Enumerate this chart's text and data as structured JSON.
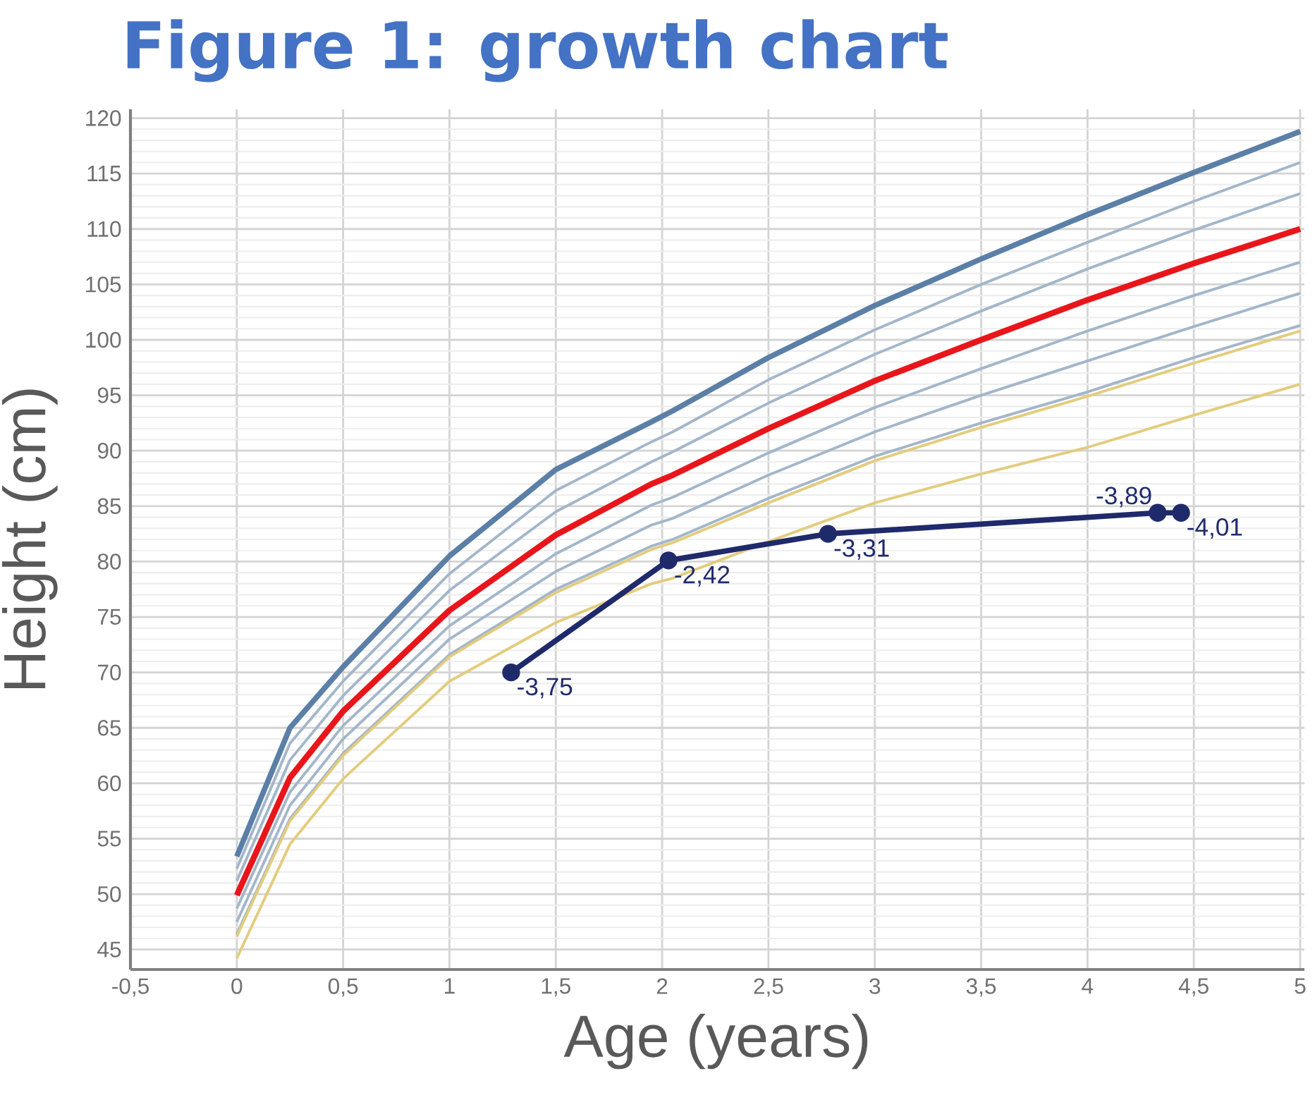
{
  "chart_data": {
    "type": "line",
    "title": "Figure 1: growth chart",
    "xlabel": "Age (years)",
    "ylabel": "Height (cm)",
    "x": [
      0,
      0.25,
      0.5,
      1,
      1.5,
      1.95,
      2.05,
      2.5,
      3,
      3.5,
      4,
      4.5,
      5
    ],
    "series": [
      {
        "color": "#5b7fa6",
        "values": [
          53.4,
          65.0,
          70.5,
          80.5,
          88.3,
          92.6,
          93.6,
          98.4,
          103.1,
          107.3,
          111.3,
          115.1,
          118.8
        ]
      },
      {
        "color": "#a3b6ca",
        "values": [
          52.3,
          63.6,
          69.2,
          78.9,
          86.4,
          90.8,
          91.7,
          96.4,
          100.9,
          105.0,
          108.8,
          112.5,
          116.0
        ]
      },
      {
        "color": "#a3b6ca",
        "values": [
          51.2,
          62.1,
          67.9,
          77.4,
          84.5,
          89.0,
          89.9,
          94.3,
          98.7,
          102.6,
          106.4,
          109.9,
          113.2
        ]
      },
      {
        "color": "#e8161b",
        "values": [
          49.9,
          60.5,
          66.5,
          75.6,
          82.4,
          87.0,
          87.8,
          92.0,
          96.3,
          100.0,
          103.6,
          106.9,
          110.0
        ]
      },
      {
        "color": "#a3b6ca",
        "values": [
          48.7,
          59.2,
          65.2,
          74.2,
          80.7,
          85.1,
          85.8,
          89.8,
          93.9,
          97.4,
          100.8,
          104.0,
          107.0
        ]
      },
      {
        "color": "#a3b6ca",
        "values": [
          47.5,
          58.0,
          64.0,
          73.0,
          79.1,
          83.3,
          83.9,
          87.8,
          91.7,
          95.0,
          98.1,
          101.2,
          104.2
        ]
      },
      {
        "color": "#a3b6ca",
        "values": [
          46.4,
          56.8,
          62.7,
          71.6,
          77.5,
          81.4,
          82.0,
          85.7,
          89.5,
          92.5,
          95.3,
          98.4,
          101.3
        ]
      },
      {
        "color": "#e3cc7c",
        "values": [
          46.2,
          56.6,
          62.5,
          71.4,
          77.2,
          81.1,
          81.7,
          85.3,
          89.1,
          92.1,
          94.9,
          97.9,
          100.8
        ]
      },
      {
        "color": "#e3cc7c",
        "values": [
          44.2,
          54.5,
          60.4,
          69.2,
          74.5,
          78.0,
          78.5,
          81.8,
          85.3,
          87.9,
          90.3,
          93.2,
          96.0
        ]
      },
      {
        "color": "#1f2a6b",
        "marker": "circle",
        "x": [
          1.29,
          2.03,
          2.78,
          4.33,
          4.44
        ],
        "values": [
          70.0,
          80.1,
          82.5,
          84.4,
          84.4
        ]
      }
    ],
    "annotations": [
      {
        "text": "-3,75",
        "x": 1.29,
        "y": 70.0
      },
      {
        "text": "-2,42",
        "x": 2.03,
        "y": 80.1
      },
      {
        "text": "-3,31",
        "x": 2.78,
        "y": 82.5
      },
      {
        "text": "-3,89",
        "x": 4.33,
        "y": 84.4
      },
      {
        "text": "-4,01",
        "x": 4.44,
        "y": 84.4
      }
    ],
    "xlim": [
      -0.5,
      5.02
    ],
    "ylim": [
      43.2,
      120.8
    ],
    "xticks": [
      {
        "value": -0.5,
        "label": "-0,5"
      },
      0,
      {
        "value": 0.5,
        "label": "0,5"
      },
      1,
      {
        "value": 1.5,
        "label": "1,5"
      },
      2,
      {
        "value": 2.5,
        "label": "2,5"
      },
      3,
      {
        "value": 3.5,
        "label": "3,5"
      },
      4,
      {
        "value": 4.5,
        "label": "4,5"
      },
      5
    ],
    "yticks": [
      45,
      50,
      55,
      60,
      65,
      70,
      75,
      80,
      85,
      90,
      95,
      100,
      105,
      110,
      115,
      120
    ],
    "grid": true,
    "marker": "none",
    "line_style": "solid"
  }
}
